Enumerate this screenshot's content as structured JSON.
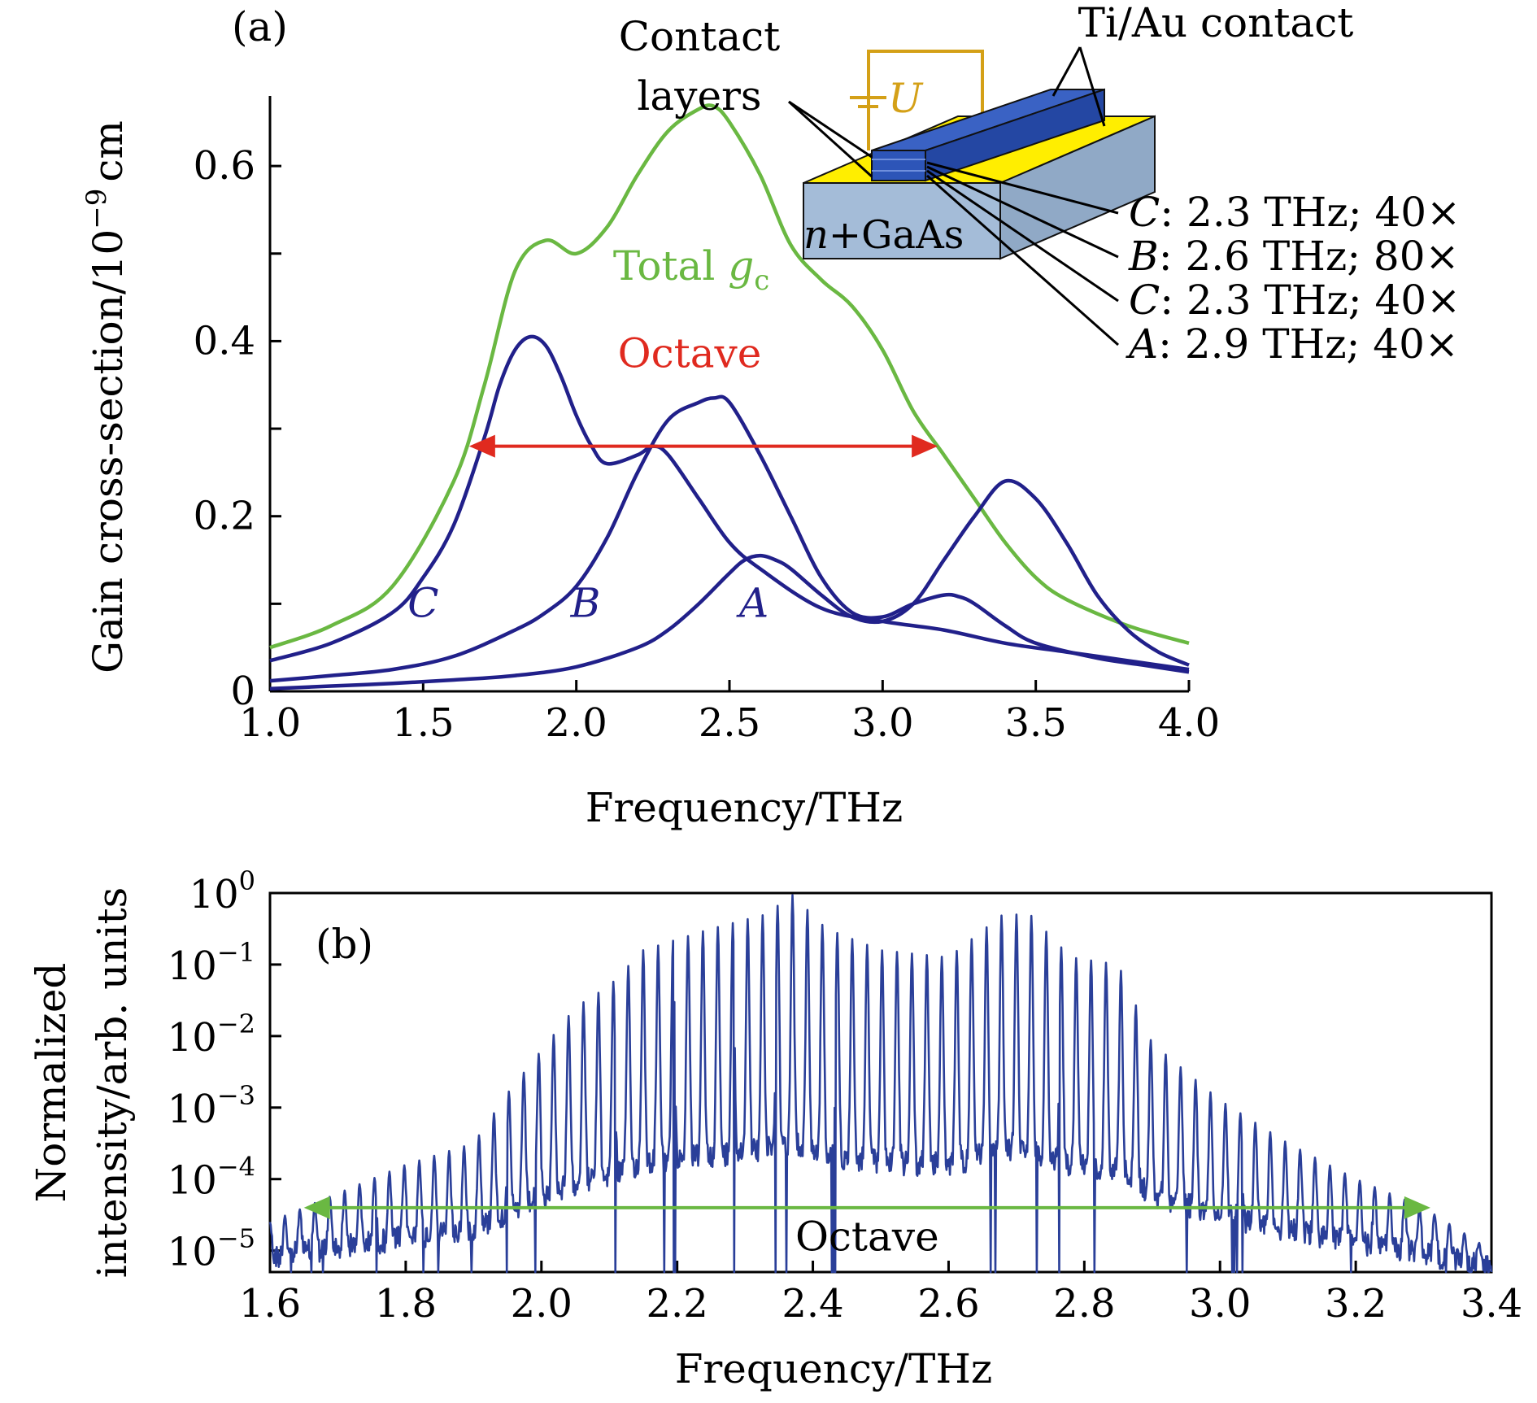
{
  "chart_data": [
    {
      "panel_label": "(a)",
      "type": "line",
      "xlabel": "Frequency/THz",
      "ylabel": "Gain cross-section/10",
      "ylabel_exp": "−9",
      "ylabel_unit": "cm",
      "xlim": [
        1.0,
        4.0
      ],
      "ylim": [
        0,
        0.68
      ],
      "xticks": [
        {
          "v": 1.0,
          "label": "1.0"
        },
        {
          "v": 1.5,
          "label": "1.5"
        },
        {
          "v": 2.0,
          "label": "2.0"
        },
        {
          "v": 2.5,
          "label": "2.5"
        },
        {
          "v": 3.0,
          "label": "3.0"
        },
        {
          "v": 3.5,
          "label": "3.5"
        },
        {
          "v": 4.0,
          "label": "4.0"
        }
      ],
      "yticks": [
        {
          "v": 0,
          "label": "0"
        },
        {
          "v": 0.1,
          "label": ""
        },
        {
          "v": 0.2,
          "label": "0.2"
        },
        {
          "v": 0.3,
          "label": ""
        },
        {
          "v": 0.4,
          "label": "0.4"
        },
        {
          "v": 0.5,
          "label": ""
        },
        {
          "v": 0.6,
          "label": "0.6"
        }
      ],
      "colors": {
        "total": "#6ab842",
        "component": "#21208a",
        "octave": "#e02a1f"
      },
      "series": [
        {
          "name": "Total g",
          "name_sub": "c",
          "x": [
            1.0,
            1.2,
            1.4,
            1.6,
            1.7,
            1.8,
            1.9,
            2.0,
            2.1,
            2.2,
            2.3,
            2.4,
            2.45,
            2.5,
            2.6,
            2.7,
            2.8,
            2.9,
            3.0,
            3.1,
            3.2,
            3.3,
            3.4,
            3.5,
            3.6,
            3.8,
            4.0
          ],
          "y": [
            0.05,
            0.075,
            0.12,
            0.24,
            0.35,
            0.48,
            0.515,
            0.5,
            0.53,
            0.59,
            0.64,
            0.665,
            0.668,
            0.65,
            0.59,
            0.51,
            0.47,
            0.44,
            0.39,
            0.32,
            0.27,
            0.22,
            0.17,
            0.13,
            0.105,
            0.075,
            0.055
          ]
        },
        {
          "name": "C",
          "x": [
            1.0,
            1.2,
            1.4,
            1.5,
            1.6,
            1.7,
            1.75,
            1.8,
            1.85,
            1.9,
            1.95,
            2.0,
            2.05,
            2.1,
            2.2,
            2.25,
            2.3,
            2.4,
            2.5,
            2.6,
            2.8,
            3.0,
            3.2,
            3.4,
            3.6,
            3.8,
            4.0
          ],
          "y": [
            0.035,
            0.055,
            0.09,
            0.13,
            0.19,
            0.29,
            0.35,
            0.39,
            0.405,
            0.395,
            0.36,
            0.315,
            0.28,
            0.26,
            0.27,
            0.28,
            0.27,
            0.22,
            0.17,
            0.14,
            0.095,
            0.08,
            0.07,
            0.055,
            0.045,
            0.035,
            0.025
          ]
        },
        {
          "name": "B",
          "x": [
            1.0,
            1.2,
            1.4,
            1.6,
            1.8,
            1.9,
            2.0,
            2.1,
            2.2,
            2.3,
            2.4,
            2.45,
            2.5,
            2.6,
            2.7,
            2.8,
            2.9,
            3.0,
            3.1,
            3.2,
            3.25,
            3.3,
            3.4,
            3.5,
            3.7,
            3.85,
            4.0
          ],
          "y": [
            0.012,
            0.018,
            0.025,
            0.04,
            0.07,
            0.09,
            0.12,
            0.175,
            0.25,
            0.31,
            0.33,
            0.335,
            0.33,
            0.27,
            0.2,
            0.13,
            0.09,
            0.085,
            0.1,
            0.11,
            0.108,
            0.1,
            0.075,
            0.055,
            0.038,
            0.03,
            0.022
          ]
        },
        {
          "name": "A",
          "x": [
            1.0,
            1.2,
            1.4,
            1.6,
            1.8,
            2.0,
            2.2,
            2.3,
            2.4,
            2.5,
            2.55,
            2.6,
            2.65,
            2.7,
            2.8,
            2.9,
            3.0,
            3.1,
            3.2,
            3.3,
            3.4,
            3.5,
            3.6,
            3.7,
            3.8,
            3.9,
            4.0
          ],
          "y": [
            0.003,
            0.006,
            0.009,
            0.013,
            0.018,
            0.028,
            0.05,
            0.07,
            0.1,
            0.135,
            0.15,
            0.155,
            0.15,
            0.14,
            0.11,
            0.085,
            0.08,
            0.1,
            0.15,
            0.2,
            0.24,
            0.22,
            0.17,
            0.11,
            0.07,
            0.045,
            0.03
          ]
        }
      ],
      "series_labels": [
        {
          "text": "C",
          "x": 1.5,
          "y": 0.085
        },
        {
          "text": "B",
          "x": 2.03,
          "y": 0.085
        },
        {
          "text": "A",
          "x": 2.58,
          "y": 0.085
        }
      ],
      "total_label": {
        "text": "Total ",
        "sym": "g",
        "sub": "c",
        "x": 2.12,
        "y": 0.47
      },
      "octave": {
        "label": "Octave",
        "x_start": 1.65,
        "x_end": 3.18,
        "y": 0.28,
        "label_x": 2.37,
        "label_y": 0.37
      },
      "inset": {
        "voltage_label": "U",
        "contact_layers_label": [
          "Contact",
          "layers"
        ],
        "ti_au_label": "Ti/Au contact",
        "substrate_label": "n+GaAs",
        "stack_legend": [
          {
            "region": "C",
            "text": ": 2.3 THz; 40×"
          },
          {
            "region": "B",
            "text": ": 2.6 THz; 80×"
          },
          {
            "region": "C",
            "text": ": 2.3 THz; 40×"
          },
          {
            "region": "A",
            "text": ": 2.9 THz; 40×"
          }
        ],
        "colors": {
          "gold": "#ffee00",
          "wire": "#d4a017",
          "ridge": "#2d55b8",
          "substrate": "#a4bcd8"
        }
      }
    },
    {
      "panel_label": "(b)",
      "type": "line",
      "xlabel": "Frequency/THz",
      "ylabel_line1": "Normalized",
      "ylabel_line2": "intensity/arb. units",
      "yscale": "log",
      "xlim": [
        1.6,
        3.4
      ],
      "ylim_log10": [
        -5.3,
        0
      ],
      "xticks": [
        {
          "v": 1.6,
          "label": "1.6"
        },
        {
          "v": 1.8,
          "label": "1.8"
        },
        {
          "v": 2.0,
          "label": "2.0"
        },
        {
          "v": 2.2,
          "label": "2.2"
        },
        {
          "v": 2.4,
          "label": "2.4"
        },
        {
          "v": 2.6,
          "label": "2.6"
        },
        {
          "v": 2.8,
          "label": "2.8"
        },
        {
          "v": 3.0,
          "label": "3.0"
        },
        {
          "v": 3.2,
          "label": "3.2"
        },
        {
          "v": 3.4,
          "label": "3.4"
        }
      ],
      "yticks": [
        {
          "log": 0,
          "base": "10",
          "exp": "0"
        },
        {
          "log": -1,
          "base": "10",
          "exp": "−1"
        },
        {
          "log": -2,
          "base": "10",
          "exp": "−2"
        },
        {
          "log": -3,
          "base": "10",
          "exp": "−3"
        },
        {
          "log": -4,
          "base": "10",
          "exp": "−4"
        },
        {
          "log": -5,
          "base": "10",
          "exp": "−5"
        }
      ],
      "colors": {
        "spectrum": "#2a3f99",
        "octave": "#6ab842"
      },
      "spectrum": {
        "comb_spacing_thz": 0.022,
        "envelope": [
          {
            "x": 1.6,
            "log": -4.6
          },
          {
            "x": 1.7,
            "log": -4.2
          },
          {
            "x": 1.8,
            "log": -3.8
          },
          {
            "x": 1.9,
            "log": -3.5
          },
          {
            "x": 1.95,
            "log": -2.8
          },
          {
            "x": 2.0,
            "log": -2.2
          },
          {
            "x": 2.05,
            "log": -1.6
          },
          {
            "x": 2.1,
            "log": -1.3
          },
          {
            "x": 2.15,
            "log": -0.8
          },
          {
            "x": 2.25,
            "log": -0.5
          },
          {
            "x": 2.33,
            "log": -0.3
          },
          {
            "x": 2.37,
            "log": -0.03
          },
          {
            "x": 2.42,
            "log": -0.5
          },
          {
            "x": 2.5,
            "log": -0.8
          },
          {
            "x": 2.6,
            "log": -0.9
          },
          {
            "x": 2.68,
            "log": -0.3
          },
          {
            "x": 2.72,
            "log": -0.3
          },
          {
            "x": 2.78,
            "log": -0.9
          },
          {
            "x": 2.85,
            "log": -1.0
          },
          {
            "x": 2.9,
            "log": -2.1
          },
          {
            "x": 3.0,
            "log": -2.9
          },
          {
            "x": 3.1,
            "log": -3.5
          },
          {
            "x": 3.2,
            "log": -4.0
          },
          {
            "x": 3.3,
            "log": -4.4
          },
          {
            "x": 3.4,
            "log": -5.0
          }
        ]
      },
      "octave": {
        "label": "Octave",
        "x_start": 1.65,
        "x_end": 3.31,
        "log_y": -4.4,
        "label_x": 2.48,
        "label_log_y": -5.0
      }
    }
  ]
}
